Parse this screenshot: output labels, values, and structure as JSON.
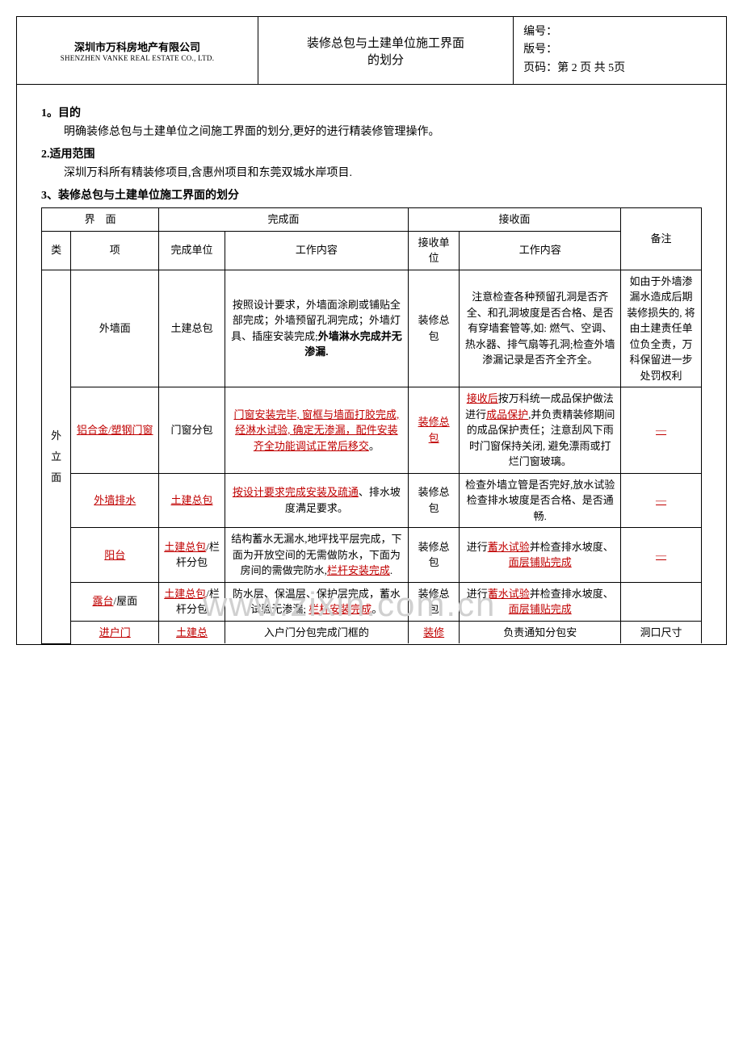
{
  "header": {
    "company_cn": "深圳市万科房地产有限公司",
    "company_en": "SHENZHEN VANKE REAL ESTATE CO., LTD.",
    "doc_title_line1": "装修总包与土建单位施工界面",
    "doc_title_line2": "的划分",
    "meta_no": "编号：",
    "meta_ver": "版号：",
    "meta_page": "页码：第 2 页 共 5页"
  },
  "sections": {
    "s1_title": "1。目的",
    "s1_text": "明确装修总包与土建单位之间施工界面的划分,更好的进行精装修管理操作。",
    "s2_title": "2.适用范围",
    "s2_text": "深圳万科所有精装修项目,含惠州项目和东莞双城水岸项目.",
    "s3_title": "3、装修总包与土建单位施工界面的划分"
  },
  "table": {
    "hd_interface": "界　面",
    "hd_done": "完成面",
    "hd_recv": "接收面",
    "hd_remark": "备注",
    "hd_class": "类",
    "hd_item": "项",
    "hd_done_unit": "完成单位",
    "hd_work": "工作内容",
    "hd_recv_unit": "接收单位",
    "hd_work2": "工作内容",
    "cat1": "外立面",
    "r1": {
      "item": "外墙面",
      "done_unit": "土建总包",
      "work1_a": "按照设计要求，外墙面涂刷或铺贴全部完成；外墙预留孔洞完成；外墙灯具、插座安装完成;",
      "work1_b": "外墙淋水完成并无渗漏.",
      "recv_unit": "装修总包",
      "work2": "注意检查各种预留孔洞是否齐全、和孔洞坡度是否合格、是否有穿墙套管等,如: 燃气、空调、热水器、排气扇等孔洞;检查外墙渗漏记录是否齐全齐全。",
      "remark": "如由于外墙渗漏水造成后期装修损失的, 将由土建责任单位负全责，万科保留进一步处罚权利"
    },
    "r2": {
      "item": "铝合金/塑钢门窗",
      "done_unit": "门窗分包",
      "work1": "门窗安装完毕, 窗框与墙面打胶完成, 经淋水试验, 确定无渗漏，配件安装齐全功能调试正常后移交",
      "work1_end": "。",
      "recv_unit": "装修总包",
      "work2_a": "接收后",
      "work2_b": "按万科统一成品保护做法进行",
      "work2_c": "成品保护",
      "work2_d": ",并负责精装修期间的成品保护责任；注意刮风下雨时门窗保持关闭, 避免漂雨或打烂门窗玻璃。",
      "remark": "—"
    },
    "r3": {
      "item": "外墙排水",
      "done_unit": "土建总包",
      "work1_a": "按设计要求完成安装及疏通",
      "work1_b": "、排水坡度满足要求。",
      "recv_unit": "装修总包",
      "work2": "检查外墙立管是否完好,放水试验检查排水坡度是否合格、是否通畅.",
      "remark": "—"
    },
    "r4": {
      "item": "阳台",
      "done_unit_a": "土建总包",
      "done_unit_b": "/栏杆分包",
      "work1_a": "结构蓄水无漏水,地坪找平层完成，下面为开放空间的无需做防水，下面为房间的需做完防水,",
      "work1_b": "栏杆安装完成",
      "work1_c": ".",
      "recv_unit": "装修总包",
      "work2_a": "进行",
      "work2_b": "蓄水试验",
      "work2_c": "并检查排水坡度、",
      "work2_d": "面层铺贴完成",
      "remark": "—"
    },
    "r5": {
      "item_a": "露台",
      "item_b": "/屋面",
      "done_unit_a": "土建总包",
      "done_unit_b": "/栏杆分包",
      "work1_a": "防水层、保温层、保护层完成，蓄水试验无渗漏; ",
      "work1_b": "栏杆安装完成",
      "work1_c": "。",
      "recv_unit": "装修总包",
      "work2_a": "进行",
      "work2_b": "蓄水试验",
      "work2_c": "并检查排水坡度、",
      "work2_d": "面层铺贴完成"
    },
    "r6": {
      "item": "进户门",
      "done_unit": "土建总",
      "work1": "入户门分包完成门框的",
      "recv_unit": "装修",
      "work2": "负责通知分包安",
      "remark": "洞口尺寸"
    }
  },
  "watermark": "www.zixin.com.cn"
}
